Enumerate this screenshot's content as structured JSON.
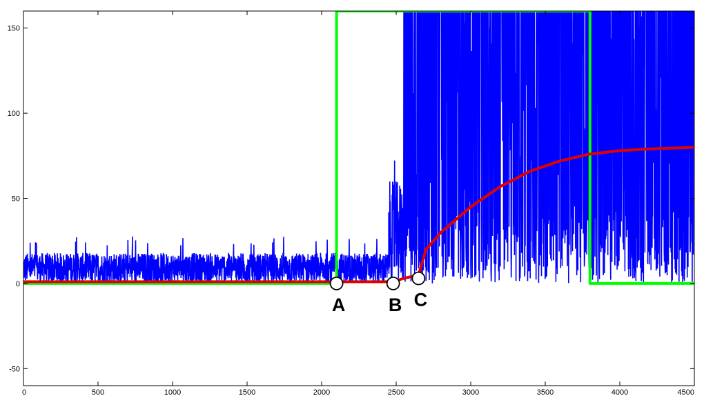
{
  "chart_data": {
    "type": "line",
    "title": "",
    "xlabel": "",
    "ylabel": "",
    "xlim": [
      0,
      4500
    ],
    "ylim": [
      -60,
      160
    ],
    "grid": false,
    "x_ticks": [
      0,
      500,
      1000,
      1500,
      2000,
      2500,
      3000,
      3500,
      4000,
      4500
    ],
    "y_ticks": [
      -50,
      0,
      50,
      100,
      150
    ],
    "colors": {
      "noise": "#0000ff",
      "step": "#00ff00",
      "smooth": "#e00000",
      "marker_fill": "#ffffff"
    },
    "series": [
      {
        "color": "#0000ff",
        "style": "noisy",
        "segments": [
          {
            "x_start": 0,
            "x_end": 2450,
            "low": 0,
            "high": 18,
            "peak": 28
          },
          {
            "x_start": 2450,
            "x_end": 2550,
            "low": 0,
            "high": 60,
            "peak": 80
          },
          {
            "x_start": 2550,
            "x_end": 4500,
            "low": 0,
            "high": 160,
            "peak": 160
          }
        ]
      },
      {
        "color": "#00ff00",
        "style": "step",
        "x": [
          0,
          2100,
          2100,
          3800,
          3800,
          4500
        ],
        "y": [
          0,
          0,
          160,
          160,
          0,
          0
        ]
      },
      {
        "color": "#e00000",
        "style": "smooth",
        "x": [
          0,
          1000,
          2000,
          2100,
          2300,
          2480,
          2550,
          2650,
          2700,
          2800,
          3000,
          3200,
          3400,
          3600,
          3800,
          4000,
          4200,
          4500
        ],
        "y": [
          1,
          1,
          1,
          1,
          1,
          1,
          3,
          5,
          20,
          30,
          45,
          57,
          66,
          72,
          76,
          78,
          79,
          80
        ]
      }
    ],
    "annotations": [
      {
        "label": "A",
        "x": 2100,
        "y": 0
      },
      {
        "label": "B",
        "x": 2480,
        "y": 0
      },
      {
        "label": "C",
        "x": 2650,
        "y": 3
      }
    ]
  }
}
